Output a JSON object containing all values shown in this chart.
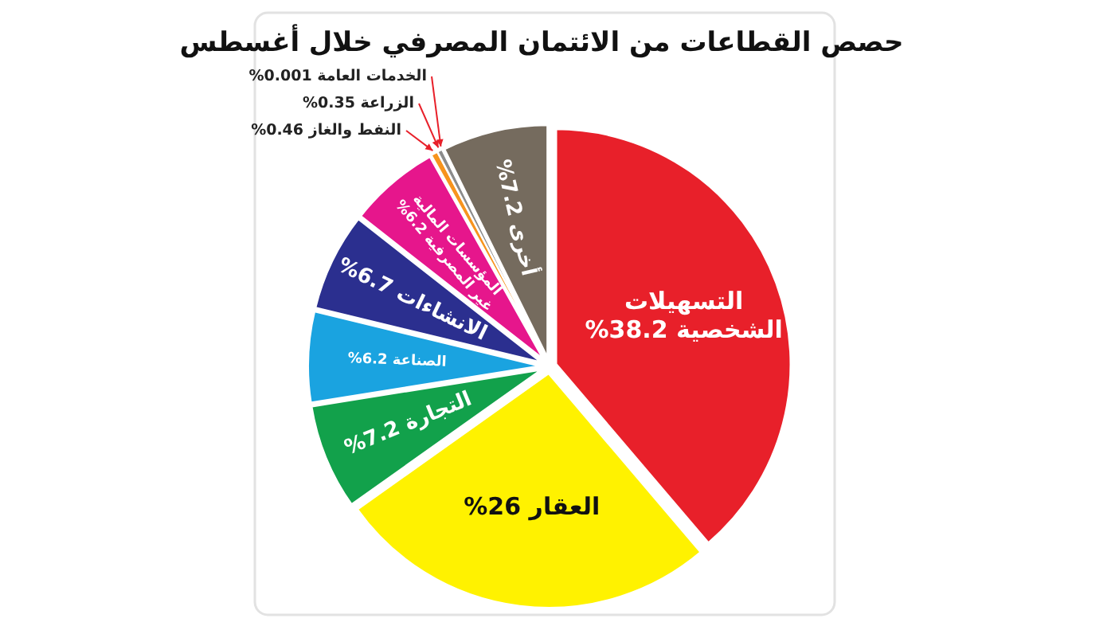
{
  "chart_data": {
    "type": "pie",
    "title": "حصص القطاعات من الائتمان المصرفي خلال أغسطس",
    "categories": [
      "التسهيلات الشخصية",
      "العقار",
      "التجارة",
      "الصناعة",
      "الانشاءات",
      "المؤسسات المالية غير المصرفية",
      "النفط والغاز",
      "الزراعة",
      "الخدمات العامة",
      "أخرى"
    ],
    "values": [
      38.2,
      26,
      7.2,
      6.2,
      6.7,
      6.2,
      0.46,
      0.35,
      0.001,
      7.2
    ],
    "value_labels": [
      "%38.2",
      "%26",
      "%7.2",
      "%6.2",
      "%6.7",
      "%6.2",
      "%0.46",
      "%0.35",
      "%0.001",
      "%7.2"
    ],
    "colors": [
      "#e8202a",
      "#fff200",
      "#12a14b",
      "#1aa3e0",
      "#2b2f8f",
      "#e6168c",
      "#f7941d",
      "#8c8c8c",
      "#111111",
      "#756b5e"
    ]
  }
}
